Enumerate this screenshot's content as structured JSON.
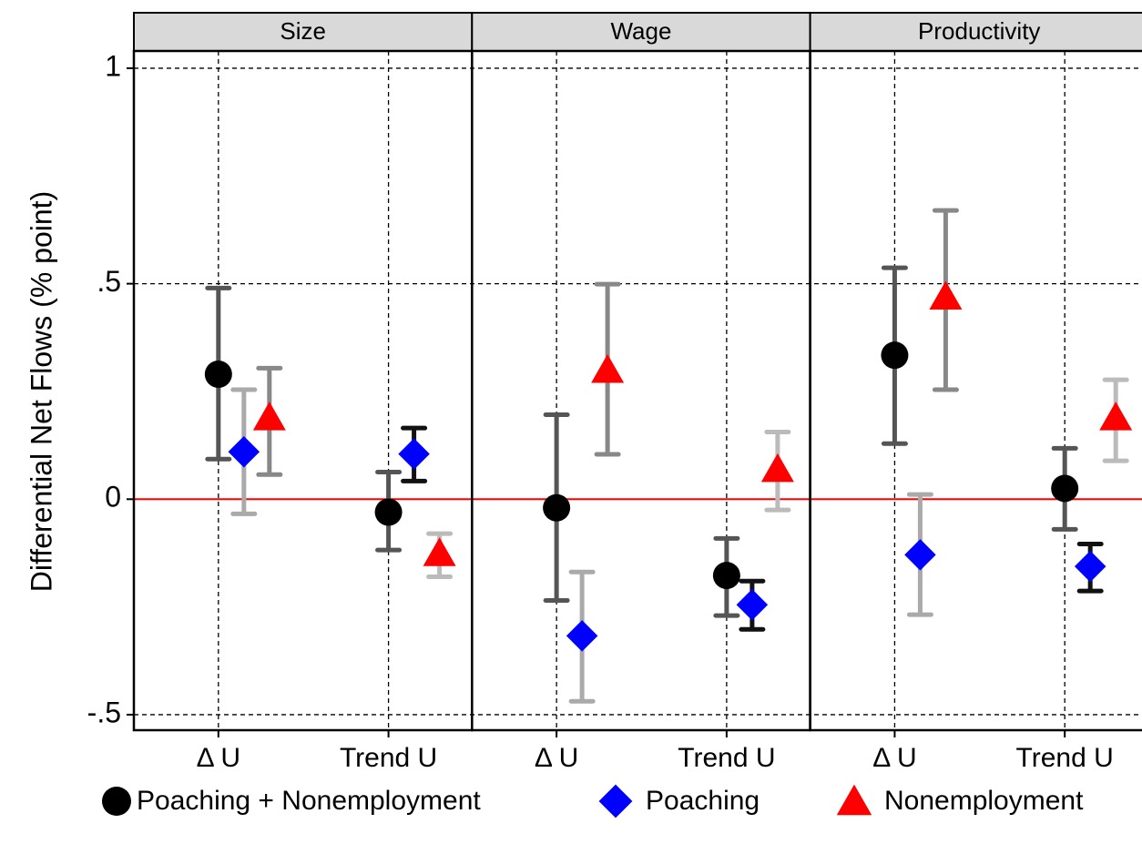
{
  "chart_data": {
    "type": "errorbar",
    "y_label": "Differential Net Flows (% point)",
    "facets": [
      "Size",
      "Wage",
      "Productivity"
    ],
    "categories": [
      "Δ U",
      "Trend U"
    ],
    "ylim": [
      -0.536,
      1.04
    ],
    "yticks": [
      {
        "value": -0.5,
        "label": "-.5"
      },
      0,
      {
        "value": 0.5,
        "label": ".5"
      },
      1
    ],
    "grid": true,
    "reference_line": {
      "value": 0,
      "color": "#ff0000"
    },
    "legend": "bottom",
    "series": [
      {
        "name": "Poaching + Nonemployment",
        "marker": "circle",
        "color": "#000000",
        "ci_colors": [
          "#555555",
          "#555555"
        ],
        "values": [
          [
            0.29,
            -0.03
          ],
          [
            -0.02,
            -0.177
          ],
          [
            0.334,
            0.025
          ]
        ],
        "lower": [
          [
            0.093,
            -0.118
          ],
          [
            -0.235,
            -0.27
          ],
          [
            0.129,
            -0.07
          ]
        ],
        "upper": [
          [
            0.49,
            0.063
          ],
          [
            0.196,
            -0.091
          ],
          [
            0.537,
            0.118
          ]
        ]
      },
      {
        "name": "Poaching",
        "marker": "diamond",
        "color": "#0000ff",
        "ci_colors": [
          "#aaaaaa",
          "#111111"
        ],
        "values": [
          [
            0.11,
            0.105
          ],
          [
            -0.317,
            -0.245
          ],
          [
            -0.129,
            -0.156
          ]
        ],
        "lower": [
          [
            -0.034,
            0.042
          ],
          [
            -0.469,
            -0.302
          ],
          [
            -0.268,
            -0.213
          ]
        ],
        "upper": [
          [
            0.254,
            0.165
          ],
          [
            -0.169,
            -0.19
          ],
          [
            0.011,
            -0.104
          ]
        ]
      },
      {
        "name": "Nonemployment",
        "marker": "triangle",
        "color": "#ff0000",
        "ci_colors": [
          "#888888",
          "#bbbbbb"
        ],
        "values": [
          [
            0.19,
            -0.125
          ],
          [
            0.3,
            0.07
          ],
          [
            0.47,
            0.19
          ]
        ],
        "lower": [
          [
            0.057,
            -0.18
          ],
          [
            0.104,
            -0.025
          ],
          [
            0.254,
            0.089
          ]
        ],
        "upper": [
          [
            0.304,
            -0.08
          ],
          [
            0.499,
            0.156
          ],
          [
            0.67,
            0.277
          ]
        ]
      }
    ]
  }
}
